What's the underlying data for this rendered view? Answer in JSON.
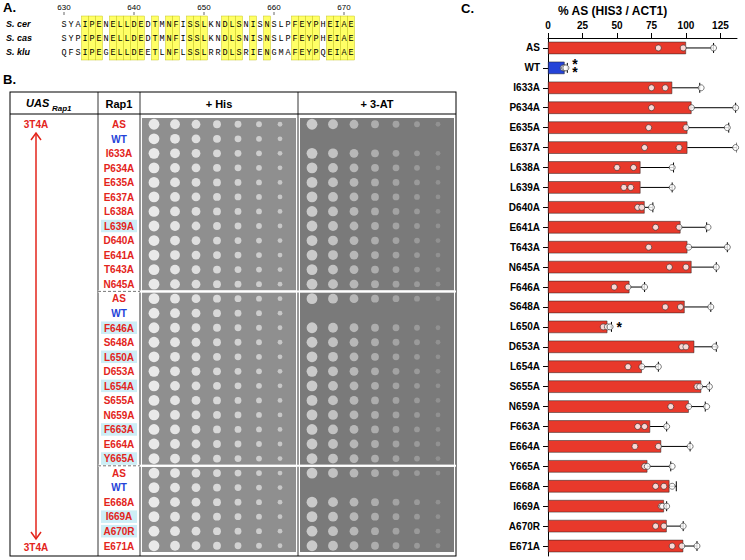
{
  "panel_a": {
    "label": "A.",
    "start": 630,
    "positions": [
      630,
      640,
      650,
      660,
      670
    ],
    "sequences": [
      {
        "name": "S. cer",
        "residues": "SYAIPENELLDEDTMNFISSLKNDLSNISNSLPFEYPHEIAE"
      },
      {
        "name": "S. cas",
        "residues": "SYPIPENELLDEDTMNFISSLKNDLSNISNSLPFEYPHEIAE"
      },
      {
        "name": "S. klu",
        "residues": "QFSIPEGELLDEETLNFLSSLRRDLSRIENGMAFEYPQEIAE"
      }
    ]
  },
  "panel_b": {
    "label": "B.",
    "header": {
      "uas": "UAS",
      "uas_subscript": "Rap1",
      "rap1": "Rap1",
      "his": "+ His",
      "at": "+ 3-AT"
    },
    "arrow_labels": [
      "3T4A",
      "3T4A"
    ],
    "arrow_color": "#e3241b",
    "groups": [
      [
        {
          "name": "AS",
          "color": "#e3241b"
        },
        {
          "name": "WT",
          "color": "#2443d8"
        },
        {
          "name": "I633A",
          "color": "#e3241b"
        },
        {
          "name": "P634A",
          "color": "#e3241b"
        },
        {
          "name": "E635A",
          "color": "#e3241b"
        },
        {
          "name": "E637A",
          "color": "#e3241b"
        },
        {
          "name": "L638A",
          "color": "#e3241b"
        },
        {
          "name": "L639A",
          "color": "#e3241b"
        },
        {
          "name": "D640A",
          "color": "#e3241b"
        },
        {
          "name": "E641A",
          "color": "#e3241b"
        },
        {
          "name": "T643A",
          "color": "#e3241b"
        },
        {
          "name": "N645A",
          "color": "#e3241b"
        }
      ],
      [
        {
          "name": "AS",
          "color": "#e3241b"
        },
        {
          "name": "WT",
          "color": "#2443d8"
        },
        {
          "name": "F646A",
          "color": "#e3241b"
        },
        {
          "name": "S648A",
          "color": "#e3241b"
        },
        {
          "name": "L650A",
          "color": "#e3241b"
        },
        {
          "name": "D653A",
          "color": "#e3241b"
        },
        {
          "name": "L654A",
          "color": "#e3241b"
        },
        {
          "name": "S655A",
          "color": "#e3241b"
        },
        {
          "name": "N659A",
          "color": "#e3241b"
        },
        {
          "name": "F663A",
          "color": "#e3241b"
        },
        {
          "name": "E664A",
          "color": "#e3241b"
        },
        {
          "name": "Y665A",
          "color": "#e3241b"
        }
      ],
      [
        {
          "name": "AS",
          "color": "#e3241b"
        },
        {
          "name": "WT",
          "color": "#2443d8"
        },
        {
          "name": "E668A",
          "color": "#e3241b"
        },
        {
          "name": "I669A",
          "color": "#e3241b"
        },
        {
          "name": "A670R",
          "color": "#e3241b"
        },
        {
          "name": "E671A",
          "color": "#e3241b"
        }
      ]
    ],
    "highlighted": [
      "L639A",
      "F646A",
      "L650A",
      "L654A",
      "F663A",
      "Y665A",
      "I669A",
      "A670R"
    ]
  },
  "panel_c_label": "C.",
  "chart_data": {
    "type": "bar",
    "orientation": "horizontal",
    "title": "% AS (HIS3 / ACT1)",
    "categories": [
      "AS",
      "WT",
      "I633A",
      "P634A",
      "E635A",
      "E637A",
      "L638A",
      "L639A",
      "D640A",
      "E641A",
      "T643A",
      "N645A",
      "F646A",
      "S648A",
      "L650A",
      "D653A",
      "L654A",
      "S655A",
      "N659A",
      "F663A",
      "E664A",
      "Y665A",
      "E668A",
      "I669A",
      "A670R",
      "E671A"
    ],
    "values": [
      100,
      12,
      90,
      104,
      101,
      101,
      67,
      67,
      70,
      96,
      101,
      104,
      59,
      99,
      43,
      106,
      68,
      111,
      102,
      74,
      82,
      72,
      88,
      84,
      86,
      98
    ],
    "errors": [
      20,
      2,
      20,
      32,
      30,
      36,
      24,
      23,
      6,
      19,
      29,
      18,
      11,
      19,
      3,
      16,
      12,
      6,
      12,
      12,
      21,
      17,
      5,
      2,
      12,
      10
    ],
    "points": [
      [
        80,
        98,
        120
      ],
      [
        11,
        12,
        13
      ],
      [
        75,
        85,
        111
      ],
      [
        75,
        104,
        136
      ],
      [
        73,
        100,
        130
      ],
      [
        70,
        95,
        136
      ],
      [
        50,
        62,
        90
      ],
      [
        55,
        60,
        90
      ],
      [
        65,
        68,
        75
      ],
      [
        78,
        95,
        116
      ],
      [
        73,
        102,
        130
      ],
      [
        88,
        100,
        122
      ],
      [
        48,
        58,
        70
      ],
      [
        85,
        96,
        118
      ],
      [
        40,
        43,
        45
      ],
      [
        97,
        100,
        121
      ],
      [
        58,
        68,
        80
      ],
      [
        108,
        110,
        117
      ],
      [
        89,
        102,
        115
      ],
      [
        65,
        70,
        86
      ],
      [
        63,
        80,
        103
      ],
      [
        70,
        72,
        90
      ],
      [
        78,
        84,
        90
      ],
      [
        82,
        83,
        86
      ],
      [
        78,
        84,
        98
      ],
      [
        90,
        97,
        108
      ]
    ],
    "colors": [
      "#e8392b",
      "#2443d8",
      "#e8392b",
      "#e8392b",
      "#e8392b",
      "#e8392b",
      "#e8392b",
      "#e8392b",
      "#e8392b",
      "#e8392b",
      "#e8392b",
      "#e8392b",
      "#e8392b",
      "#e8392b",
      "#e8392b",
      "#e8392b",
      "#e8392b",
      "#e8392b",
      "#e8392b",
      "#e8392b",
      "#e8392b",
      "#e8392b",
      "#e8392b",
      "#e8392b",
      "#e8392b",
      "#e8392b"
    ],
    "annotations": [
      {
        "category": "WT",
        "text": "*"
      },
      {
        "category": "WT",
        "text": "*"
      },
      {
        "category": "L650A",
        "text": "*"
      }
    ],
    "xlim": [
      0,
      137
    ],
    "xticks": [
      0,
      25,
      50,
      75,
      100,
      125
    ],
    "grid": false
  }
}
